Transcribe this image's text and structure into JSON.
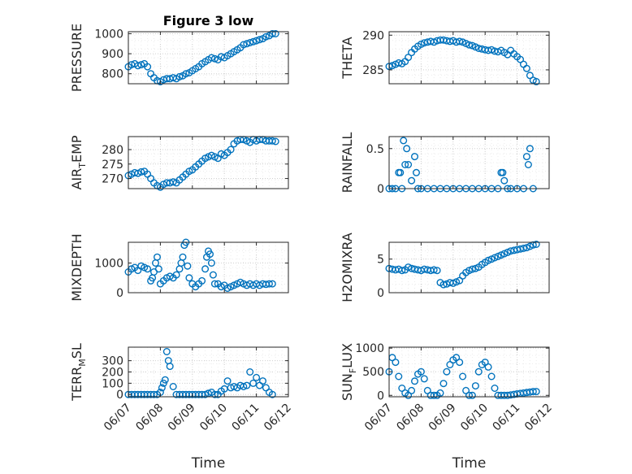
{
  "chart_data": [
    {
      "type": "scatter",
      "title": "Figure 3 low",
      "ylabel": "PRESSURE",
      "xlabel": "",
      "ylim": [
        750,
        1010
      ],
      "yticks": [
        800,
        900,
        1000
      ],
      "xlim": [
        0,
        5
      ],
      "xticks": [],
      "x": [
        0,
        0.1,
        0.2,
        0.3,
        0.4,
        0.5,
        0.6,
        0.7,
        0.8,
        0.9,
        1.0,
        1.1,
        1.2,
        1.3,
        1.4,
        1.5,
        1.6,
        1.7,
        1.8,
        1.9,
        2.0,
        2.1,
        2.2,
        2.3,
        2.4,
        2.5,
        2.6,
        2.7,
        2.8,
        2.9,
        3.0,
        3.1,
        3.2,
        3.3,
        3.4,
        3.5,
        3.6,
        3.7,
        3.8,
        3.9,
        4.0,
        4.1,
        4.2,
        4.3,
        4.4,
        4.5,
        4.6
      ],
      "y": [
        835,
        845,
        850,
        840,
        845,
        850,
        835,
        800,
        780,
        765,
        760,
        770,
        775,
        775,
        780,
        775,
        785,
        790,
        800,
        805,
        815,
        825,
        835,
        850,
        860,
        870,
        880,
        875,
        870,
        885,
        880,
        890,
        900,
        910,
        920,
        930,
        945,
        950,
        955,
        960,
        965,
        970,
        975,
        985,
        990,
        1000,
        1000
      ]
    },
    {
      "type": "scatter",
      "title": "",
      "ylabel": "THETA",
      "xlabel": "",
      "ylim": [
        283,
        290.5
      ],
      "yticks": [
        285,
        290
      ],
      "xlim": [
        0,
        5
      ],
      "xticks": [],
      "x": [
        0,
        0.1,
        0.2,
        0.3,
        0.4,
        0.5,
        0.6,
        0.7,
        0.8,
        0.9,
        1.0,
        1.1,
        1.2,
        1.3,
        1.4,
        1.5,
        1.6,
        1.7,
        1.8,
        1.9,
        2.0,
        2.1,
        2.2,
        2.3,
        2.4,
        2.5,
        2.6,
        2.7,
        2.8,
        2.9,
        3.0,
        3.1,
        3.2,
        3.3,
        3.4,
        3.5,
        3.6,
        3.7,
        3.8,
        3.9,
        4.0,
        4.1,
        4.2,
        4.3,
        4.4,
        4.5,
        4.6
      ],
      "y": [
        285.5,
        285.6,
        285.8,
        286.0,
        285.9,
        286.2,
        286.8,
        287.5,
        288.0,
        288.4,
        288.7,
        288.9,
        289.0,
        289.1,
        289.0,
        289.2,
        289.3,
        289.3,
        289.2,
        289.1,
        289.2,
        289.0,
        289.1,
        289.0,
        288.8,
        288.6,
        288.5,
        288.3,
        288.1,
        288.0,
        287.9,
        287.8,
        287.9,
        287.7,
        287.6,
        287.8,
        287.5,
        287.2,
        287.8,
        287.3,
        286.9,
        286.5,
        285.8,
        285.2,
        284.2,
        283.5,
        283.3
      ]
    },
    {
      "type": "scatter",
      "title": "",
      "ylabel": "AIR_TEMP",
      "xlabel": "",
      "ylim": [
        266.5,
        284.5
      ],
      "yticks": [
        270,
        275,
        280
      ],
      "xlim": [
        0,
        5
      ],
      "xticks": [],
      "x": [
        0,
        0.1,
        0.2,
        0.3,
        0.4,
        0.5,
        0.6,
        0.7,
        0.8,
        0.9,
        1.0,
        1.1,
        1.2,
        1.3,
        1.4,
        1.5,
        1.6,
        1.7,
        1.8,
        1.9,
        2.0,
        2.1,
        2.2,
        2.3,
        2.4,
        2.5,
        2.6,
        2.7,
        2.8,
        2.9,
        3.0,
        3.1,
        3.2,
        3.3,
        3.4,
        3.5,
        3.6,
        3.7,
        3.8,
        3.9,
        4.0,
        4.1,
        4.2,
        4.3,
        4.4,
        4.5,
        4.6
      ],
      "y": [
        271,
        271.5,
        272,
        271.8,
        272.3,
        272.5,
        271.5,
        270,
        268.5,
        267.5,
        267,
        268,
        268.5,
        268.5,
        268.8,
        268.5,
        269.5,
        270.5,
        271.5,
        272.5,
        273,
        274,
        275,
        276,
        277,
        277.5,
        278,
        277.5,
        277,
        278.5,
        278,
        279,
        280,
        282,
        283,
        283.5,
        283.5,
        283,
        282.5,
        283.5,
        283,
        283.5,
        283.5,
        283,
        283,
        283,
        282.8
      ]
    },
    {
      "type": "scatter",
      "title": "",
      "ylabel": "RAINFALL",
      "xlabel": "",
      "ylim": [
        0,
        0.65
      ],
      "yticks": [
        0,
        0.5
      ],
      "xlim": [
        0,
        5
      ],
      "xticks": [],
      "x": [
        0,
        0.1,
        0.2,
        0.3,
        0.35,
        0.4,
        0.45,
        0.5,
        0.55,
        0.6,
        0.7,
        0.8,
        0.85,
        0.9,
        1.0,
        1.2,
        1.4,
        1.6,
        1.8,
        2.0,
        2.2,
        2.4,
        2.6,
        2.8,
        3.0,
        3.2,
        3.4,
        3.5,
        3.55,
        3.6,
        3.7,
        3.8,
        4.0,
        4.2,
        4.3,
        4.35,
        4.4,
        4.5
      ],
      "y": [
        0,
        0,
        0,
        0.2,
        0.2,
        0,
        0.6,
        0.3,
        0.5,
        0.3,
        0.1,
        0.4,
        0.2,
        0,
        0,
        0,
        0,
        0,
        0,
        0,
        0,
        0,
        0,
        0,
        0,
        0,
        0,
        0.2,
        0.2,
        0.1,
        0,
        0,
        0,
        0,
        0.4,
        0.3,
        0.5,
        0
      ]
    },
    {
      "type": "scatter",
      "title": "",
      "ylabel": "MIXDEPTH",
      "xlabel": "",
      "ylim": [
        0,
        1700
      ],
      "yticks": [
        0,
        1000
      ],
      "xlim": [
        0,
        5
      ],
      "xticks": [],
      "x": [
        0,
        0.1,
        0.2,
        0.3,
        0.4,
        0.5,
        0.6,
        0.7,
        0.75,
        0.8,
        0.85,
        0.9,
        0.95,
        1.0,
        1.1,
        1.2,
        1.3,
        1.4,
        1.5,
        1.6,
        1.65,
        1.7,
        1.75,
        1.8,
        1.85,
        1.9,
        2.0,
        2.1,
        2.2,
        2.3,
        2.4,
        2.45,
        2.5,
        2.55,
        2.6,
        2.65,
        2.7,
        2.8,
        2.9,
        3.0,
        3.1,
        3.2,
        3.3,
        3.4,
        3.5,
        3.6,
        3.7,
        3.8,
        3.9,
        4.0,
        4.1,
        4.2,
        4.3,
        4.4,
        4.5
      ],
      "y": [
        700,
        800,
        850,
        750,
        900,
        850,
        800,
        400,
        500,
        700,
        1000,
        1200,
        800,
        300,
        400,
        500,
        550,
        500,
        600,
        800,
        1000,
        1200,
        1600,
        1700,
        900,
        500,
        300,
        200,
        300,
        400,
        800,
        1200,
        1400,
        1300,
        1000,
        600,
        300,
        300,
        200,
        250,
        150,
        200,
        250,
        300,
        350,
        300,
        250,
        300,
        250,
        300,
        250,
        300,
        280,
        300,
        300
      ]
    },
    {
      "type": "scatter",
      "title": "",
      "ylabel": "H2OMIXRA",
      "xlabel": "",
      "ylim": [
        0,
        7.5
      ],
      "yticks": [
        0,
        5
      ],
      "xlim": [
        0,
        5
      ],
      "xticks": [],
      "x": [
        0,
        0.1,
        0.2,
        0.3,
        0.4,
        0.5,
        0.6,
        0.7,
        0.8,
        0.9,
        1.0,
        1.1,
        1.2,
        1.3,
        1.4,
        1.5,
        1.6,
        1.7,
        1.8,
        1.9,
        2.0,
        2.1,
        2.2,
        2.3,
        2.4,
        2.5,
        2.6,
        2.7,
        2.8,
        2.9,
        3.0,
        3.1,
        3.2,
        3.3,
        3.4,
        3.5,
        3.6,
        3.7,
        3.8,
        3.9,
        4.0,
        4.1,
        4.2,
        4.3,
        4.4,
        4.5,
        4.6
      ],
      "y": [
        3.6,
        3.5,
        3.4,
        3.5,
        3.3,
        3.4,
        3.8,
        3.6,
        3.5,
        3.4,
        3.3,
        3.5,
        3.4,
        3.3,
        3.4,
        3.3,
        1.5,
        1.2,
        1.3,
        1.5,
        1.4,
        1.6,
        1.8,
        2.5,
        3.0,
        3.3,
        3.5,
        3.6,
        3.8,
        4.2,
        4.5,
        4.8,
        5.0,
        5.2,
        5.4,
        5.6,
        5.8,
        6.0,
        6.2,
        6.3,
        6.4,
        6.5,
        6.6,
        6.7,
        6.9,
        7.1,
        7.2
      ]
    },
    {
      "type": "scatter",
      "title": "",
      "ylabel": "TERR_MSL",
      "xlabel": "Time",
      "ylim": [
        -20,
        420
      ],
      "yticks": [
        0,
        100,
        200,
        300
      ],
      "xlim": [
        0,
        5
      ],
      "xticks": [
        "06/07",
        "06/08",
        "06/09",
        "06/10",
        "06/11",
        "06/12"
      ],
      "x": [
        0,
        0.1,
        0.2,
        0.3,
        0.4,
        0.5,
        0.6,
        0.7,
        0.8,
        0.9,
        1.0,
        1.05,
        1.1,
        1.15,
        1.2,
        1.25,
        1.3,
        1.4,
        1.5,
        1.6,
        1.7,
        1.8,
        1.9,
        2.0,
        2.1,
        2.2,
        2.3,
        2.4,
        2.5,
        2.6,
        2.7,
        2.8,
        2.9,
        3.0,
        3.1,
        3.2,
        3.3,
        3.4,
        3.5,
        3.6,
        3.7,
        3.8,
        3.9,
        4.0,
        4.1,
        4.2,
        4.3,
        4.4,
        4.5
      ],
      "y": [
        0,
        0,
        0,
        0,
        0,
        0,
        0,
        0,
        0,
        0,
        20,
        60,
        100,
        130,
        380,
        300,
        250,
        70,
        0,
        0,
        0,
        0,
        0,
        0,
        0,
        0,
        0,
        0,
        10,
        20,
        0,
        0,
        30,
        50,
        120,
        60,
        70,
        60,
        80,
        70,
        80,
        200,
        100,
        150,
        80,
        120,
        60,
        20,
        0
      ]
    },
    {
      "type": "scatter",
      "title": "",
      "ylabel": "SUN_FLUX",
      "xlabel": "Time",
      "ylim": [
        -30,
        1020
      ],
      "yticks": [
        0,
        500,
        1000
      ],
      "xlim": [
        0,
        5
      ],
      "xticks": [
        "06/07",
        "06/08",
        "06/09",
        "06/10",
        "06/11",
        "06/12"
      ],
      "x": [
        0,
        0.1,
        0.2,
        0.3,
        0.4,
        0.5,
        0.6,
        0.7,
        0.8,
        0.9,
        1.0,
        1.1,
        1.2,
        1.3,
        1.4,
        1.5,
        1.6,
        1.7,
        1.8,
        1.9,
        2.0,
        2.1,
        2.2,
        2.3,
        2.4,
        2.5,
        2.6,
        2.7,
        2.8,
        2.9,
        3.0,
        3.1,
        3.2,
        3.3,
        3.4,
        3.5,
        3.6,
        3.7,
        3.8,
        3.9,
        4.0,
        4.1,
        4.2,
        4.3,
        4.4,
        4.5,
        4.6
      ],
      "y": [
        500,
        800,
        700,
        400,
        150,
        50,
        0,
        100,
        300,
        450,
        500,
        350,
        100,
        0,
        0,
        0,
        50,
        250,
        500,
        650,
        750,
        800,
        700,
        400,
        100,
        0,
        0,
        200,
        500,
        650,
        700,
        600,
        400,
        150,
        0,
        0,
        0,
        0,
        10,
        20,
        30,
        40,
        50,
        60,
        70,
        80,
        80
      ]
    }
  ]
}
